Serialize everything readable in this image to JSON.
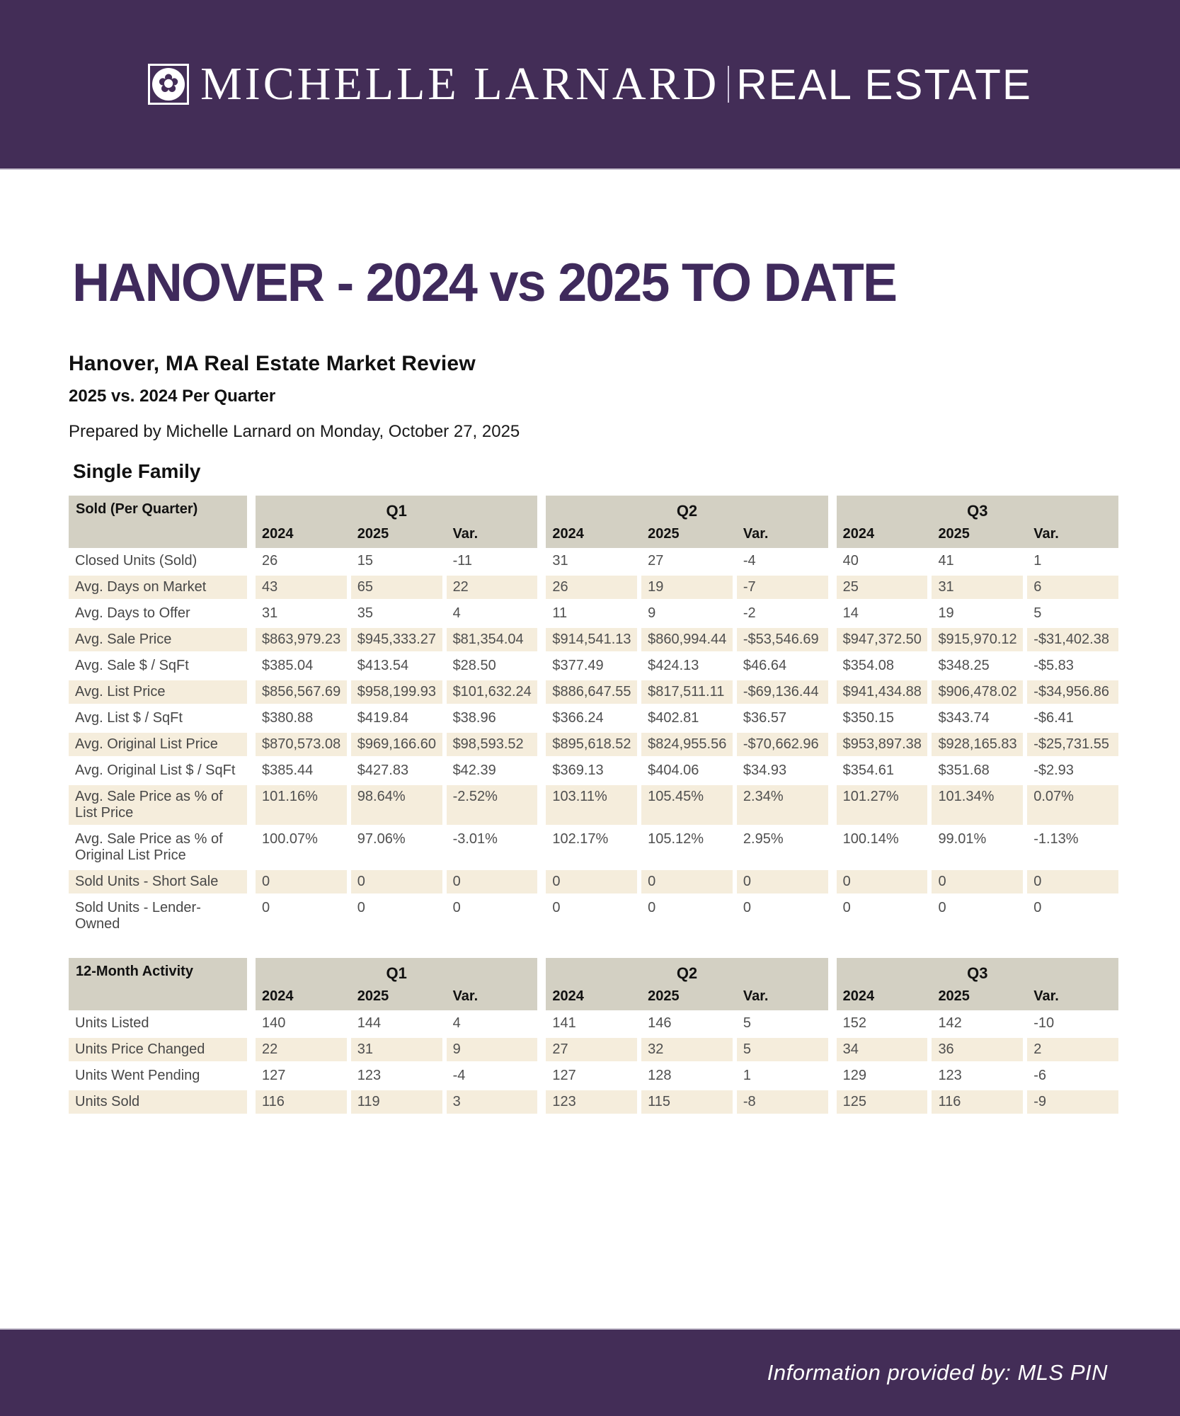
{
  "brand": {
    "serif_text": "MICHELLE LARNARD",
    "sans_text": "REAL ESTATE",
    "icon": "sand-dollar-icon",
    "icon_glyph": "✿"
  },
  "page_title": "HANOVER - 2024 vs 2025 TO DATE",
  "report": {
    "title": "Hanover, MA Real Estate Market Review",
    "subtitle": "2025 vs. 2024 Per Quarter",
    "prepared_line": "Prepared by Michelle Larnard on Monday, October 27, 2025",
    "section_label": "Single Family"
  },
  "colors": {
    "banner_purple": "#432d57",
    "title_purple": "#3f2a5c",
    "table_header_bg": "#d3d0c3",
    "row_stripe_bg": "#f5eddc"
  },
  "tables": [
    {
      "corner": "Sold (Per Quarter)",
      "quarters": [
        "Q1",
        "Q2",
        "Q3"
      ],
      "col_headers": [
        "2024",
        "2025",
        "Var."
      ],
      "rows": [
        {
          "label": "Closed Units (Sold)",
          "values": [
            "26",
            "15",
            "-11",
            "31",
            "27",
            "-4",
            "40",
            "41",
            "1"
          ]
        },
        {
          "label": "Avg. Days on Market",
          "values": [
            "43",
            "65",
            "22",
            "26",
            "19",
            "-7",
            "25",
            "31",
            "6"
          ]
        },
        {
          "label": "Avg. Days to Offer",
          "values": [
            "31",
            "35",
            "4",
            "11",
            "9",
            "-2",
            "14",
            "19",
            "5"
          ]
        },
        {
          "label": "Avg. Sale Price",
          "values": [
            "$863,979.23",
            "$945,333.27",
            "$81,354.04",
            "$914,541.13",
            "$860,994.44",
            "-$53,546.69",
            "$947,372.50",
            "$915,970.12",
            "-$31,402.38"
          ]
        },
        {
          "label": "Avg. Sale $ / SqFt",
          "values": [
            "$385.04",
            "$413.54",
            "$28.50",
            "$377.49",
            "$424.13",
            "$46.64",
            "$354.08",
            "$348.25",
            "-$5.83"
          ]
        },
        {
          "label": "Avg. List Price",
          "values": [
            "$856,567.69",
            "$958,199.93",
            "$101,632.24",
            "$886,647.55",
            "$817,511.11",
            "-$69,136.44",
            "$941,434.88",
            "$906,478.02",
            "-$34,956.86"
          ]
        },
        {
          "label": "Avg. List $ / SqFt",
          "values": [
            "$380.88",
            "$419.84",
            "$38.96",
            "$366.24",
            "$402.81",
            "$36.57",
            "$350.15",
            "$343.74",
            "-$6.41"
          ]
        },
        {
          "label": "Avg. Original List Price",
          "values": [
            "$870,573.08",
            "$969,166.60",
            "$98,593.52",
            "$895,618.52",
            "$824,955.56",
            "-$70,662.96",
            "$953,897.38",
            "$928,165.83",
            "-$25,731.55"
          ]
        },
        {
          "label": "Avg. Original List $ / SqFt",
          "values": [
            "$385.44",
            "$427.83",
            "$42.39",
            "$369.13",
            "$404.06",
            "$34.93",
            "$354.61",
            "$351.68",
            "-$2.93"
          ]
        },
        {
          "label": "Avg. Sale Price as % of List Price",
          "values": [
            "101.16%",
            "98.64%",
            "-2.52%",
            "103.11%",
            "105.45%",
            "2.34%",
            "101.27%",
            "101.34%",
            "0.07%"
          ]
        },
        {
          "label": "Avg. Sale Price as % of Original List Price",
          "values": [
            "100.07%",
            "97.06%",
            "-3.01%",
            "102.17%",
            "105.12%",
            "2.95%",
            "100.14%",
            "99.01%",
            "-1.13%"
          ]
        },
        {
          "label": "Sold Units - Short Sale",
          "values": [
            "0",
            "0",
            "0",
            "0",
            "0",
            "0",
            "0",
            "0",
            "0"
          ]
        },
        {
          "label": "Sold Units - Lender-Owned",
          "values": [
            "0",
            "0",
            "0",
            "0",
            "0",
            "0",
            "0",
            "0",
            "0"
          ]
        }
      ]
    },
    {
      "corner": "12-Month Activity",
      "quarters": [
        "Q1",
        "Q2",
        "Q3"
      ],
      "col_headers": [
        "2024",
        "2025",
        "Var."
      ],
      "rows": [
        {
          "label": "Units Listed",
          "values": [
            "140",
            "144",
            "4",
            "141",
            "146",
            "5",
            "152",
            "142",
            "-10"
          ]
        },
        {
          "label": "Units Price Changed",
          "values": [
            "22",
            "31",
            "9",
            "27",
            "32",
            "5",
            "34",
            "36",
            "2"
          ]
        },
        {
          "label": "Units Went Pending",
          "values": [
            "127",
            "123",
            "-4",
            "127",
            "128",
            "1",
            "129",
            "123",
            "-6"
          ]
        },
        {
          "label": "Units Sold",
          "values": [
            "116",
            "119",
            "3",
            "123",
            "115",
            "-8",
            "125",
            "116",
            "-9"
          ]
        }
      ]
    }
  ],
  "footer": {
    "text": "Information provided by: MLS PIN"
  }
}
